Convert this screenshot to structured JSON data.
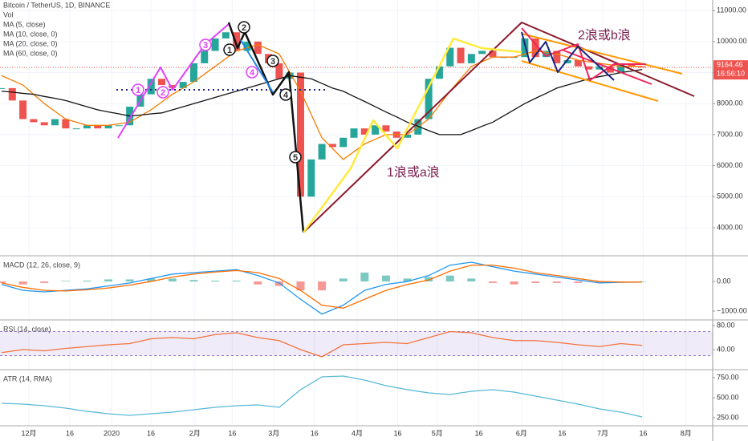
{
  "chart_data": [
    {
      "type": "candlestick",
      "title": "Bitcoin / TetherUS, 1D, BINANCE",
      "studies": [
        "Vol",
        "MA (5, close)",
        "MA (10, close, 0)"
      ],
      "values": [
        8500,
        8100,
        7500,
        7400,
        7300,
        7500,
        7200,
        7200,
        7300,
        7200,
        7300,
        7300,
        7900,
        8300,
        8800,
        8600,
        8500,
        8700,
        9300,
        9700,
        10100,
        10300,
        9700,
        10000,
        9600,
        9300,
        8800,
        9000,
        5000,
        6200,
        6700,
        6600,
        6900,
        7200,
        7000,
        7300,
        7100,
        6900,
        7000,
        7500,
        8800,
        9200,
        9800,
        9300,
        9600,
        9700,
        9500,
        9500,
        9500,
        10100,
        9500,
        9700,
        9300,
        9400,
        9200,
        9100,
        9200,
        9000,
        9300,
        9200,
        9164.46
      ],
      "up_color": "#26a69a",
      "down_color": "#ef5350",
      "series": [
        {
          "name": "MA (20, close, 0)",
          "color": "#f57c00",
          "values": [
            8900,
            8750,
            8600,
            8300,
            8000,
            7750,
            7500,
            7400,
            7300,
            7300,
            7300,
            7350,
            7400,
            7600,
            7800,
            8050,
            8300,
            8500,
            8700,
            8950,
            9200,
            9450,
            9700,
            9800,
            9900,
            9750,
            9600,
            9000,
            8400,
            7650,
            6900,
            6550,
            6200,
            6450,
            6700,
            6850,
            7000,
            7000,
            7000,
            7250,
            7500,
            7950,
            8400,
            8800,
            9200,
            9350,
            9500,
            9500,
            9500,
            9600,
            9700,
            9650,
            9600,
            9500,
            9400,
            9350,
            9300,
            9250,
            9200,
            9200,
            9200
          ]
        },
        {
          "name": "MA (60, close, 0)",
          "color": "#111111",
          "values": [
            8400,
            8370,
            8330,
            8300,
            8230,
            8170,
            8100,
            8000,
            7900,
            7800,
            7730,
            7670,
            7600,
            7630,
            7670,
            7700,
            7800,
            7900,
            8000,
            8100,
            8200,
            8300,
            8400,
            8500,
            8600,
            8700,
            8800,
            8900,
            8850,
            8800,
            8650,
            8500,
            8400,
            8230,
            8070,
            7900,
            7730,
            7570,
            7400,
            7270,
            7130,
            7000,
            7000,
            7000,
            7130,
            7270,
            7400,
            7600,
            7800,
            8000,
            8170,
            8330,
            8500,
            8600,
            8700,
            8800,
            8870,
            8930,
            9000,
            9050,
            9100
          ]
        }
      ],
      "last_price": 9164.46,
      "countdown": "16:56:10",
      "xlim": [
        -0.15,
        66.6
      ],
      "xticks": [
        {
          "value": 2.56,
          "label": "12月"
        },
        {
          "value": 6.39,
          "label": "16"
        },
        {
          "value": 10.3,
          "label": "2020"
        },
        {
          "value": 13.98,
          "label": "16"
        },
        {
          "value": 18.1,
          "label": "2月"
        },
        {
          "value": 21.6,
          "label": "16"
        },
        {
          "value": 25.5,
          "label": "3月"
        },
        {
          "value": 29.3,
          "label": "16"
        },
        {
          "value": 33.3,
          "label": "4月"
        },
        {
          "value": 37.1,
          "label": "16"
        },
        {
          "value": 40.8,
          "label": "5月"
        },
        {
          "value": 44.7,
          "label": "16"
        },
        {
          "value": 48.7,
          "label": "6月"
        },
        {
          "value": 52.5,
          "label": "16"
        },
        {
          "value": 56.3,
          "label": "7月"
        },
        {
          "value": 60.1,
          "label": "16"
        },
        {
          "value": 64.1,
          "label": "8月"
        }
      ],
      "ylim": [
        3120,
        11340
      ],
      "yticks": [
        {
          "value": 4000,
          "label": "4000.00"
        },
        {
          "value": 5000,
          "label": "5000.00"
        },
        {
          "value": 6000,
          "label": "6000.00"
        },
        {
          "value": 7000,
          "label": "7000.00"
        },
        {
          "value": 8000,
          "label": "8000.00"
        },
        {
          "value": 9000,
          "label": "9000.00"
        },
        {
          "value": 10000,
          "label": "10000.00"
        },
        {
          "value": 11000,
          "label": "11000.00"
        }
      ],
      "grid": true,
      "annotations": {
        "wave_a": "1浪或a浪",
        "wave_b": "2浪或b浪",
        "black": [
          "1",
          "2",
          "3",
          "4",
          "5"
        ],
        "pink": [
          "1",
          "2",
          "3",
          "4"
        ]
      }
    },
    {
      "type": "line",
      "title": "MACD (12, 26, close, 9)",
      "xlim": [
        -0.075,
        33.3
      ],
      "ylim": [
        -1270,
        840
      ],
      "yticks": [
        {
          "value": 0,
          "label": "0.00"
        },
        {
          "value": -1000,
          "label": "−1000.00"
        }
      ],
      "histogram": [
        -50,
        -100,
        -50,
        20,
        30,
        70,
        70,
        100,
        100,
        50,
        30,
        30,
        -100,
        -150,
        -300,
        -300,
        100,
        300,
        200,
        100,
        150,
        200,
        100,
        -50,
        -100,
        -50,
        -50,
        -50,
        -50,
        -10,
        0
      ],
      "up_color": "#26a69a",
      "down_color": "#ef5350",
      "series": [
        {
          "color": "#2196f3",
          "values": [
            -100,
            -300,
            -350,
            -300,
            -250,
            -150,
            -50,
            100,
            250,
            300,
            350,
            400,
            200,
            -50,
            -600,
            -1100,
            -800,
            -300,
            -100,
            0,
            200,
            550,
            650,
            500,
            350,
            250,
            150,
            50,
            -50,
            -30,
            -20
          ]
        },
        {
          "color": "#ff6d00",
          "values": [
            -50,
            -200,
            -300,
            -320,
            -280,
            -220,
            -120,
            0,
            150,
            250,
            320,
            370,
            300,
            100,
            -300,
            -800,
            -900,
            -600,
            -300,
            -100,
            50,
            350,
            550,
            550,
            450,
            300,
            200,
            100,
            0,
            -20,
            -20
          ]
        }
      ]
    },
    {
      "type": "line",
      "title": "RSI (14, close)",
      "xlim": [
        -0.075,
        33.3
      ],
      "ylim": [
        8,
        88
      ],
      "band": [
        30,
        70
      ],
      "yticks": [
        {
          "value": 80,
          "label": "80.00"
        },
        {
          "value": 40,
          "label": "40.00"
        }
      ],
      "series": [
        {
          "color": "#f4733c",
          "values": [
            35,
            40,
            38,
            42,
            45,
            48,
            50,
            58,
            60,
            58,
            65,
            68,
            60,
            55,
            40,
            28,
            48,
            50,
            52,
            50,
            60,
            70,
            68,
            60,
            55,
            55,
            52,
            48,
            45,
            50,
            47
          ]
        }
      ]
    },
    {
      "type": "line",
      "title": "ATR (14, RMA)",
      "xlim": [
        -0.075,
        33.3
      ],
      "ylim": [
        160,
        840
      ],
      "yticks": [
        {
          "value": 750,
          "label": "750.00"
        },
        {
          "value": 500,
          "label": "500.00"
        },
        {
          "value": 250,
          "label": "250.00"
        }
      ],
      "series": [
        {
          "color": "#58b9d8",
          "values": [
            430,
            420,
            400,
            370,
            330,
            300,
            280,
            300,
            320,
            350,
            380,
            400,
            410,
            380,
            600,
            760,
            770,
            720,
            650,
            600,
            560,
            540,
            580,
            600,
            570,
            520,
            470,
            420,
            360,
            320,
            260
          ]
        }
      ]
    }
  ]
}
